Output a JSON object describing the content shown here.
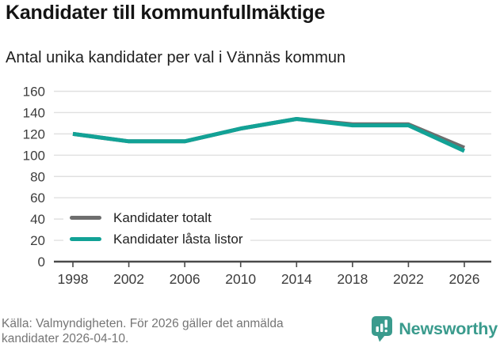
{
  "header": {
    "title": "Kandidater till kommunfullmäktige",
    "subtitle": "Antal unika kandidater per val i Vännäs kommun"
  },
  "chart_data": {
    "type": "line",
    "title": "Kandidater till kommunfullmäktige",
    "subtitle": "Antal unika kandidater per val i Vännäs kommun",
    "x": [
      1998,
      2002,
      2006,
      2010,
      2014,
      2018,
      2022,
      2026
    ],
    "series": [
      {
        "id": "kandidater-totalt",
        "name": "Kandidater totalt",
        "color": "#6e6e6e",
        "values": [
          120,
          113,
          113,
          125,
          134,
          129,
          129,
          107
        ]
      },
      {
        "id": "kandidater-lasta-listor",
        "name": "Kandidater låsta listor",
        "color": "#12a296",
        "values": [
          120,
          113,
          113,
          125,
          134,
          128,
          128,
          104
        ]
      }
    ],
    "ylim": [
      0,
      160
    ],
    "yticks": [
      0,
      20,
      40,
      60,
      80,
      100,
      120,
      140,
      160
    ],
    "xlabel": "",
    "ylabel": "",
    "grid": true,
    "legend_position": "inside-bottom-left",
    "style": {
      "grid_color": "#e0e0e0",
      "axis_color": "#4a4a4a",
      "tick_label_color": "#3d3d3d",
      "line_width": 5
    }
  },
  "footer": {
    "source_lines": [
      "Källa: Valmyndigheten. För 2026 gäller det anmälda",
      "kandidater 2026-04-10."
    ],
    "brand": "Newsworthy",
    "brand_color": "#3a9b8d"
  },
  "icons": {
    "brand_icon": "newsworthy-speech-bubble-bar-chart-icon"
  }
}
